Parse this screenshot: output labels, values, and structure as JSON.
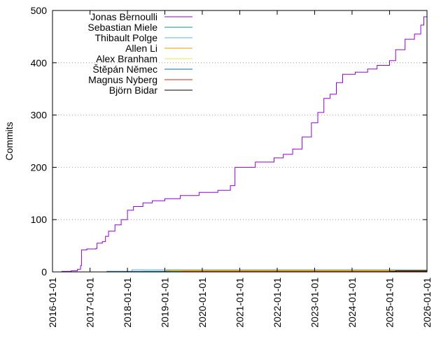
{
  "chart_data": {
    "type": "line",
    "title": "",
    "xlabel": "",
    "ylabel": "Commits",
    "xlim": [
      "2016-01-01",
      "2026-01-01"
    ],
    "ylim": [
      0,
      500
    ],
    "x_ticks": [
      "2016-01-01",
      "2017-01-01",
      "2018-01-01",
      "2019-01-01",
      "2020-01-01",
      "2021-01-01",
      "2022-01-01",
      "2023-01-01",
      "2024-01-01",
      "2025-01-01",
      "2026-01-01"
    ],
    "y_ticks": [
      0,
      100,
      200,
      300,
      400,
      500
    ],
    "grid": true,
    "legend_position": "top-left",
    "series": [
      {
        "name": "Jonas Bernoulli",
        "color": "#9400d3",
        "points": [
          [
            "2016-01-01",
            0
          ],
          [
            "2016-04-01",
            1
          ],
          [
            "2016-07-01",
            2
          ],
          [
            "2016-09-01",
            5
          ],
          [
            "2016-10-01",
            12
          ],
          [
            "2016-10-10",
            42
          ],
          [
            "2016-12-01",
            44
          ],
          [
            "2017-03-01",
            45
          ],
          [
            "2017-03-10",
            55
          ],
          [
            "2017-05-01",
            58
          ],
          [
            "2017-06-01",
            68
          ],
          [
            "2017-07-01",
            78
          ],
          [
            "2017-09-01",
            90
          ],
          [
            "2017-11-01",
            100
          ],
          [
            "2018-01-01",
            118
          ],
          [
            "2018-03-01",
            125
          ],
          [
            "2018-06-01",
            132
          ],
          [
            "2018-09-01",
            136
          ],
          [
            "2019-01-01",
            140
          ],
          [
            "2019-06-01",
            146
          ],
          [
            "2019-12-01",
            152
          ],
          [
            "2020-06-01",
            156
          ],
          [
            "2020-10-01",
            165
          ],
          [
            "2020-11-15",
            200
          ],
          [
            "2021-06-01",
            210
          ],
          [
            "2021-12-01",
            218
          ],
          [
            "2022-03-01",
            225
          ],
          [
            "2022-06-01",
            235
          ],
          [
            "2022-09-01",
            258
          ],
          [
            "2022-12-01",
            285
          ],
          [
            "2023-02-01",
            305
          ],
          [
            "2023-04-01",
            332
          ],
          [
            "2023-06-01",
            340
          ],
          [
            "2023-08-01",
            362
          ],
          [
            "2023-10-01",
            378
          ],
          [
            "2024-02-01",
            382
          ],
          [
            "2024-06-01",
            388
          ],
          [
            "2024-09-01",
            395
          ],
          [
            "2025-01-01",
            404
          ],
          [
            "2025-03-01",
            425
          ],
          [
            "2025-06-01",
            445
          ],
          [
            "2025-09-01",
            455
          ],
          [
            "2025-11-01",
            472
          ],
          [
            "2025-12-01",
            488
          ],
          [
            "2026-01-01",
            500
          ]
        ]
      },
      {
        "name": "Sebastian Miele",
        "color": "#009e73",
        "points": [
          [
            "2018-01-01",
            0
          ],
          [
            "2018-06-01",
            1
          ],
          [
            "2019-06-01",
            2
          ],
          [
            "2020-06-01",
            3
          ],
          [
            "2026-01-01",
            3
          ]
        ]
      },
      {
        "name": "Thibault Polge",
        "color": "#56b4e9",
        "points": [
          [
            "2018-02-01",
            0
          ],
          [
            "2018-02-15",
            4
          ],
          [
            "2026-01-01",
            4
          ]
        ]
      },
      {
        "name": "Allen Li",
        "color": "#e69f00",
        "points": [
          [
            "2019-01-01",
            0
          ],
          [
            "2019-01-15",
            3
          ],
          [
            "2026-01-01",
            3
          ]
        ]
      },
      {
        "name": "Alex Branham",
        "color": "#f0e442",
        "points": [
          [
            "2019-03-01",
            0
          ],
          [
            "2019-03-15",
            2
          ],
          [
            "2026-01-01",
            2
          ]
        ]
      },
      {
        "name": "Štěpán Němec",
        "color": "#0072b2",
        "points": [
          [
            "2017-06-01",
            0
          ],
          [
            "2017-06-15",
            1
          ],
          [
            "2018-01-01",
            1
          ],
          [
            "2026-01-01",
            1
          ]
        ]
      },
      {
        "name": "Magnus Nyberg",
        "color": "#e51e10",
        "points": [
          [
            "2019-06-01",
            0
          ],
          [
            "2019-06-15",
            1
          ],
          [
            "2026-01-01",
            1
          ]
        ]
      },
      {
        "name": "Björn Bidar",
        "color": "#000000",
        "points": [
          [
            "2024-12-01",
            0
          ],
          [
            "2025-01-01",
            1
          ],
          [
            "2025-03-01",
            2
          ],
          [
            "2026-01-01",
            2
          ]
        ]
      }
    ]
  }
}
